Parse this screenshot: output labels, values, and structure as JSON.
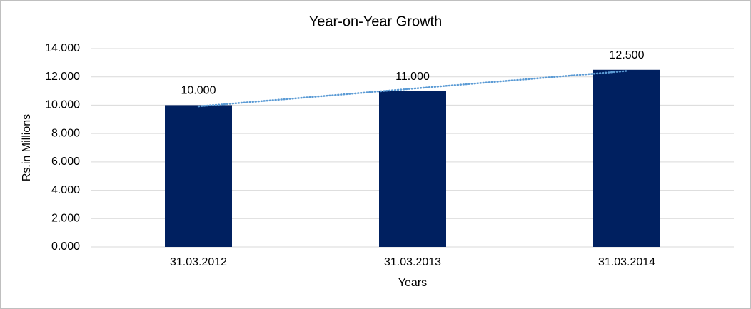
{
  "chart_data": {
    "type": "bar",
    "title": "Year-on-Year Growth",
    "x_label": "Years",
    "y_label": "Rs.in Millions",
    "categories": [
      "31.03.2012",
      "31.03.2013",
      "31.03.2014"
    ],
    "values": [
      10000,
      11000,
      12500
    ],
    "value_labels": [
      "10.000",
      "11.000",
      "12.500"
    ],
    "color": "#002060",
    "trendline": "linear",
    "trendline_color": "#5b9bd5",
    "ylim": [
      0,
      14000
    ],
    "yticks": [
      {
        "value": 0,
        "label": "0.000"
      },
      {
        "value": 2000,
        "label": "2.000"
      },
      {
        "value": 4000,
        "label": "4.000"
      },
      {
        "value": 6000,
        "label": "6.000"
      },
      {
        "value": 8000,
        "label": "8.000"
      },
      {
        "value": 10000,
        "label": "10.000"
      },
      {
        "value": 12000,
        "label": "12.000"
      },
      {
        "value": 14000,
        "label": "14.000"
      }
    ],
    "grid": true
  }
}
